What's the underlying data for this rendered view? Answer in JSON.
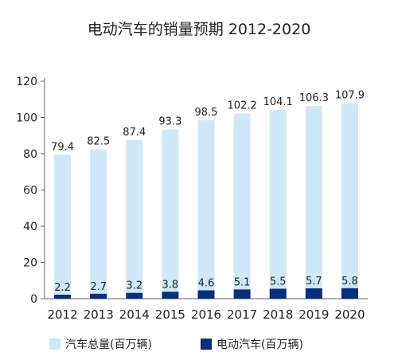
{
  "chart_data": {
    "type": "bar",
    "title": "电动汽车的销量预期 2012-2020",
    "categories": [
      "2012",
      "2013",
      "2014",
      "2015",
      "2016",
      "2017",
      "2018",
      "2019",
      "2020"
    ],
    "series": [
      {
        "name": "汽车总量(百万辆)",
        "values": [
          79.4,
          82.5,
          87.4,
          93.3,
          98.5,
          102.2,
          104.1,
          106.3,
          107.9
        ],
        "color": "#cfe8f8"
      },
      {
        "name": "电动汽车(百万辆)",
        "values": [
          2.2,
          2.7,
          3.2,
          3.8,
          4.6,
          5.1,
          5.5,
          5.7,
          5.8
        ],
        "color": "#0a2f7a"
      }
    ],
    "ylim": [
      0,
      120
    ],
    "yticks": [
      0,
      20,
      40,
      60,
      80,
      100,
      120
    ],
    "xlabel": "",
    "ylabel": "",
    "grid": false,
    "legend_position": "bottom"
  }
}
